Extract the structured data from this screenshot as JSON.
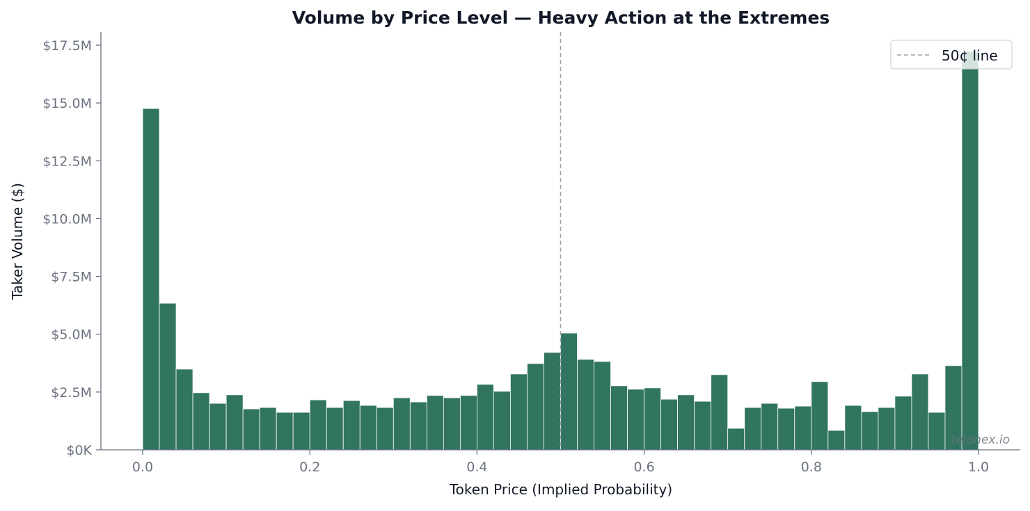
{
  "chart_data": {
    "type": "bar",
    "title": "Volume by Price Level — Heavy Action at the Extremes",
    "xlabel": "Token Price (Implied Probability)",
    "ylabel": "Taker Volume ($)",
    "xlim": [
      -0.05,
      1.05
    ],
    "ylim": [
      0,
      18.1
    ],
    "y_unit": "M",
    "bin_width": 0.02,
    "x_ticks": [
      "0.0",
      "0.2",
      "0.4",
      "0.6",
      "0.8",
      "1.0"
    ],
    "y_ticks": [
      "$0K",
      "$2.5M",
      "$5.0M",
      "$7.5M",
      "$10.0M",
      "$12.5M",
      "$15.0M",
      "$17.5M"
    ],
    "bin_starts": [
      0.0,
      0.02,
      0.04,
      0.06,
      0.08,
      0.1,
      0.12,
      0.14,
      0.16,
      0.18,
      0.2,
      0.22,
      0.24,
      0.26,
      0.28,
      0.3,
      0.32,
      0.34,
      0.36,
      0.38,
      0.4,
      0.42,
      0.44,
      0.46,
      0.48,
      0.5,
      0.52,
      0.54,
      0.56,
      0.58,
      0.6,
      0.62,
      0.64,
      0.66,
      0.68,
      0.7,
      0.72,
      0.74,
      0.76,
      0.78,
      0.8,
      0.82,
      0.84,
      0.86,
      0.88,
      0.9,
      0.92,
      0.94,
      0.96,
      0.98
    ],
    "values": [
      14.76,
      6.34,
      3.49,
      2.47,
      2.01,
      2.38,
      1.77,
      1.83,
      1.62,
      1.62,
      2.16,
      1.83,
      2.13,
      1.92,
      1.83,
      2.25,
      2.07,
      2.35,
      2.25,
      2.35,
      2.83,
      2.53,
      3.28,
      3.73,
      4.21,
      5.05,
      3.91,
      3.82,
      2.77,
      2.62,
      2.68,
      2.19,
      2.38,
      2.1,
      3.25,
      0.93,
      1.83,
      2.01,
      1.8,
      1.89,
      2.95,
      0.84,
      1.92,
      1.65,
      1.83,
      2.32,
      3.28,
      1.62,
      3.64,
      17.23
    ],
    "reference_line": {
      "x": 0.5,
      "label": "50¢ line",
      "style": "dashed",
      "color": "#9ca3af"
    },
    "legend": {
      "position": "top-right",
      "entries": [
        "50¢ line"
      ]
    },
    "bar_color": "#317560",
    "grid": false,
    "watermark": "telonex.io"
  }
}
